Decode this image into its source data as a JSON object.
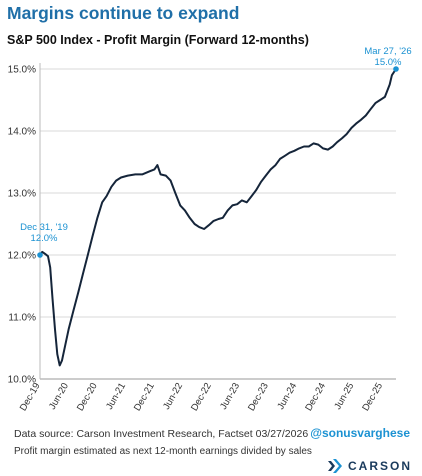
{
  "header": {
    "title": "Margins continue to expand",
    "chart_title": "S&P 500 Index - Profit Margin (Forward 12-months)"
  },
  "footer": {
    "source": "Data source: Carson Investment Research, Factset   03/27/2026",
    "note": "Profit margin estimated as next 12-month earnings divided by sales",
    "handle": "@sonusvarghese",
    "logo_text": "CARSON"
  },
  "colors": {
    "title": "#1f6fa8",
    "line": "#15253a",
    "annotation": "#1c92d2",
    "grid": "#d9d9d9"
  },
  "chart_data": {
    "type": "line",
    "title": "S&P 500 Index - Profit Margin (Forward 12-months)",
    "x_range": [
      "2019-12-31",
      "2026-03-27"
    ],
    "ylim": [
      10.0,
      15.0
    ],
    "y_ticks": [
      10.0,
      11.0,
      12.0,
      13.0,
      14.0,
      15.0
    ],
    "y_tick_labels": [
      "10.0%",
      "11.0%",
      "12.0%",
      "13.0%",
      "14.0%",
      "15.0%"
    ],
    "x_tick_labels": [
      "Dec-19",
      "Jun-20",
      "Dec-20",
      "Jun-21",
      "Dec-21",
      "Jun-22",
      "Dec-22",
      "Jun-23",
      "Dec-23",
      "Jun-24",
      "Dec-24",
      "Jun-25",
      "Dec-25"
    ],
    "x_tick_dates": [
      "2019-12-31",
      "2020-06-30",
      "2020-12-31",
      "2021-06-30",
      "2021-12-31",
      "2022-06-30",
      "2022-12-31",
      "2023-06-30",
      "2023-12-31",
      "2024-06-30",
      "2024-12-31",
      "2025-06-30",
      "2025-12-31"
    ],
    "grid": "horizontal",
    "series": [
      {
        "points": [
          [
            "2019-12-31",
            12.0
          ],
          [
            "2020-01-15",
            12.05
          ],
          [
            "2020-02-01",
            12.02
          ],
          [
            "2020-02-20",
            11.98
          ],
          [
            "2020-03-05",
            11.8
          ],
          [
            "2020-03-20",
            11.3
          ],
          [
            "2020-04-05",
            10.8
          ],
          [
            "2020-04-20",
            10.4
          ],
          [
            "2020-05-05",
            10.22
          ],
          [
            "2020-05-20",
            10.3
          ],
          [
            "2020-06-10",
            10.55
          ],
          [
            "2020-07-01",
            10.8
          ],
          [
            "2020-08-01",
            11.1
          ],
          [
            "2020-09-01",
            11.4
          ],
          [
            "2020-10-01",
            11.7
          ],
          [
            "2020-11-01",
            12.0
          ],
          [
            "2020-12-01",
            12.3
          ],
          [
            "2021-01-01",
            12.6
          ],
          [
            "2021-02-01",
            12.85
          ],
          [
            "2021-03-01",
            12.95
          ],
          [
            "2021-04-01",
            13.1
          ],
          [
            "2021-05-01",
            13.2
          ],
          [
            "2021-06-01",
            13.25
          ],
          [
            "2021-07-15",
            13.28
          ],
          [
            "2021-09-01",
            13.3
          ],
          [
            "2021-10-15",
            13.3
          ],
          [
            "2021-12-01",
            13.35
          ],
          [
            "2022-01-01",
            13.38
          ],
          [
            "2022-01-20",
            13.45
          ],
          [
            "2022-02-10",
            13.3
          ],
          [
            "2022-03-15",
            13.28
          ],
          [
            "2022-04-15",
            13.2
          ],
          [
            "2022-05-15",
            13.0
          ],
          [
            "2022-06-15",
            12.8
          ],
          [
            "2022-07-15",
            12.72
          ],
          [
            "2022-08-15",
            12.6
          ],
          [
            "2022-09-15",
            12.5
          ],
          [
            "2022-10-15",
            12.45
          ],
          [
            "2022-11-15",
            12.42
          ],
          [
            "2022-12-15",
            12.48
          ],
          [
            "2023-01-15",
            12.55
          ],
          [
            "2023-02-15",
            12.58
          ],
          [
            "2023-03-15",
            12.6
          ],
          [
            "2023-04-15",
            12.72
          ],
          [
            "2023-05-15",
            12.8
          ],
          [
            "2023-06-15",
            12.82
          ],
          [
            "2023-07-15",
            12.88
          ],
          [
            "2023-08-15",
            12.85
          ],
          [
            "2023-09-15",
            12.95
          ],
          [
            "2023-10-15",
            13.05
          ],
          [
            "2023-11-15",
            13.18
          ],
          [
            "2023-12-15",
            13.28
          ],
          [
            "2024-01-15",
            13.38
          ],
          [
            "2024-02-15",
            13.45
          ],
          [
            "2024-03-15",
            13.55
          ],
          [
            "2024-04-15",
            13.6
          ],
          [
            "2024-05-15",
            13.65
          ],
          [
            "2024-06-15",
            13.68
          ],
          [
            "2024-07-15",
            13.72
          ],
          [
            "2024-08-15",
            13.75
          ],
          [
            "2024-09-15",
            13.75
          ],
          [
            "2024-10-15",
            13.8
          ],
          [
            "2024-11-15",
            13.78
          ],
          [
            "2024-12-15",
            13.72
          ],
          [
            "2025-01-15",
            13.7
          ],
          [
            "2025-02-15",
            13.75
          ],
          [
            "2025-03-15",
            13.82
          ],
          [
            "2025-04-15",
            13.88
          ],
          [
            "2025-05-15",
            13.95
          ],
          [
            "2025-06-15",
            14.05
          ],
          [
            "2025-07-15",
            14.12
          ],
          [
            "2025-08-15",
            14.18
          ],
          [
            "2025-09-15",
            14.25
          ],
          [
            "2025-10-15",
            14.35
          ],
          [
            "2025-11-15",
            14.45
          ],
          [
            "2025-12-15",
            14.5
          ],
          [
            "2026-01-15",
            14.55
          ],
          [
            "2026-02-15",
            14.75
          ],
          [
            "2026-03-01",
            14.9
          ],
          [
            "2026-03-27",
            15.0
          ]
        ]
      }
    ],
    "annotations": [
      {
        "date_label": "Dec 31, '19",
        "value_label": "12.0%",
        "x": "2019-12-31",
        "y": 12.0
      },
      {
        "date_label": "Mar 27, '26",
        "value_label": "15.0%",
        "x": "2026-03-27",
        "y": 15.0
      }
    ]
  }
}
